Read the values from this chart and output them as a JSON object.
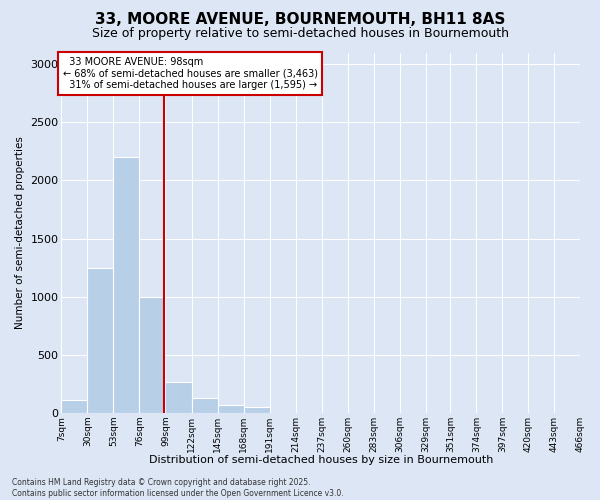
{
  "title": "33, MOORE AVENUE, BOURNEMOUTH, BH11 8AS",
  "subtitle": "Size of property relative to semi-detached houses in Bournemouth",
  "xlabel": "Distribution of semi-detached houses by size in Bournemouth",
  "ylabel": "Number of semi-detached properties",
  "property_label": "33 MOORE AVENUE: 98sqm",
  "pct_smaller": 68,
  "count_smaller": 3463,
  "pct_larger": 31,
  "count_larger": 1595,
  "footnote1": "Contains HM Land Registry data © Crown copyright and database right 2025.",
  "footnote2": "Contains public sector information licensed under the Open Government Licence v3.0.",
  "bin_labels": [
    "7sqm",
    "30sqm",
    "53sqm",
    "76sqm",
    "99sqm",
    "122sqm",
    "145sqm",
    "168sqm",
    "191sqm",
    "214sqm",
    "237sqm",
    "260sqm",
    "283sqm",
    "306sqm",
    "329sqm",
    "351sqm",
    "374sqm",
    "397sqm",
    "420sqm",
    "443sqm",
    "466sqm"
  ],
  "bin_edges": [
    7,
    30,
    53,
    76,
    99,
    122,
    145,
    168,
    191,
    214,
    237,
    260,
    283,
    306,
    329,
    351,
    374,
    397,
    420,
    443,
    466
  ],
  "bar_heights": [
    110,
    1250,
    2200,
    1000,
    270,
    130,
    70,
    50,
    0,
    0,
    0,
    0,
    0,
    0,
    0,
    0,
    0,
    0,
    0,
    0
  ],
  "bar_color": "#b8cfe8",
  "vline_color": "#cc0000",
  "vline_x": 98,
  "ylim": [
    0,
    3100
  ],
  "yticks": [
    0,
    500,
    1000,
    1500,
    2000,
    2500,
    3000
  ],
  "background_color": "#dce6f5",
  "title_fontsize": 11,
  "subtitle_fontsize": 9
}
